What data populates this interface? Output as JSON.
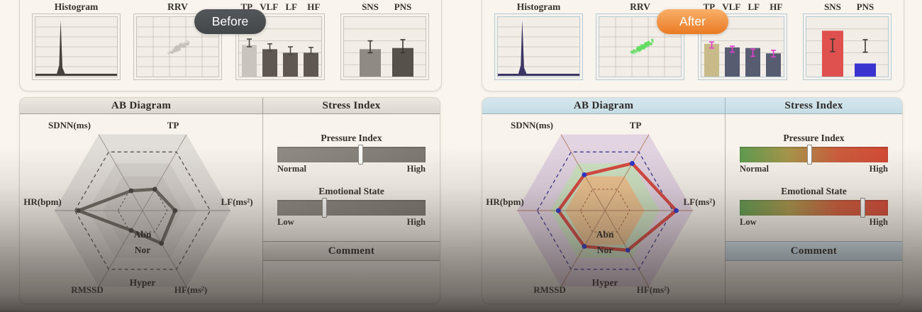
{
  "page": {
    "background": "#faf5ee"
  },
  "groups": [
    {
      "id": "before",
      "badge": {
        "label": "Before",
        "color_start": "#535759",
        "color_end": "#43474a",
        "text_color": "#ffffff"
      },
      "theme": {
        "panel_border": "#d7d2ca",
        "box_border": "#c7c2bb",
        "box_bg": "#f2eee7",
        "grid_color": "rgba(125,115,105,0.28)",
        "header_bg_start": "#ece8e1",
        "header_bg_end": "#dcd8d1",
        "header_border": "#a29d96"
      },
      "top_charts": {
        "histogram": {
          "label": "Histogram",
          "spike_color": "#46413c",
          "peak_x": 0.31,
          "peak_height": 0.92
        },
        "rrv": {
          "label": "RRV",
          "dot_color": "#c6c1ba",
          "dot_count": 110,
          "seed": 7
        },
        "spectrum": {
          "labels": [
            "TP",
            "VLF",
            "LF",
            "HF"
          ],
          "values": [
            0.53,
            0.46,
            0.4,
            0.4
          ],
          "bar_colors": [
            "#c9c4bd",
            "#5f5852",
            "#5f5852",
            "#5f5852"
          ],
          "error_bars": [
            [
              0.5,
              0.63
            ],
            [
              0.43,
              0.55
            ],
            [
              0.37,
              0.5
            ],
            [
              0.38,
              0.49
            ]
          ],
          "error_color": "#4e4944"
        },
        "ans": {
          "labels": [
            "SNS",
            "PNS"
          ],
          "values": [
            0.46,
            0.48
          ],
          "bar_colors": [
            "#8f8a83",
            "#57514b"
          ],
          "error_bars": [
            [
              0.4,
              0.6
            ],
            [
              0.4,
              0.62
            ]
          ],
          "error_color": "#3c3834"
        }
      },
      "ab_diagram": {
        "title": "AB Diagram",
        "axes": {
          "hr": "HR(bpm)",
          "sdnn": "SDNN(ms)",
          "tp": "TP",
          "lf": "LF(ms²)",
          "hf": "HF(ms²)",
          "rmssd": "RMSSD"
        },
        "zone_labels": [
          "Abn",
          "Nor",
          "Hyper"
        ],
        "values": {
          "hr": 0.73,
          "sdnn": 0.26,
          "tp": 0.28,
          "lf": 0.37,
          "hf": 0.43,
          "rmssd": 0.26
        },
        "colors": {
          "zones": [
            "#e1ddd8",
            "#d6d2cd",
            "#cdc9c4"
          ],
          "axis": "#98938d",
          "dashed_ring": "#59544e",
          "inner_dash": "#59544e",
          "line": "#6e6861",
          "dot": "#4a4540"
        }
      },
      "stress": {
        "title": "Stress Index",
        "pressure": {
          "label": "Pressure Index",
          "min": "Normal",
          "max": "High",
          "value": 0.56
        },
        "emotional": {
          "label": "Emotional State",
          "min": "Low",
          "max": "High",
          "value": 0.32
        },
        "bar_colors": [
          "#908b84",
          "#87827b",
          "#7d7871"
        ],
        "comment_title": "Comment"
      }
    },
    {
      "id": "after",
      "badge": {
        "label": "After",
        "color_start": "#f8b069",
        "color_end": "#ea7a22",
        "text_color": "#ffffff"
      },
      "theme": {
        "panel_border": "#ddd8d0",
        "box_border": "#b5cad4",
        "box_bg": "#f2eee7",
        "grid_color": "rgba(125,115,105,0.28)",
        "header_bg_start": "#d6e7ed",
        "header_bg_end": "#c5dce4",
        "header_border": "#9fb3bb"
      },
      "top_charts": {
        "histogram": {
          "label": "Histogram",
          "spike_color": "#3b3565",
          "peak_x": 0.3,
          "peak_height": 0.92
        },
        "rrv": {
          "label": "RRV",
          "dot_color": "#63dc63",
          "dot_count": 130,
          "seed": 3
        },
        "spectrum": {
          "labels": [
            "TP",
            "VLF",
            "LF",
            "HF"
          ],
          "values": [
            0.55,
            0.49,
            0.48,
            0.39
          ],
          "bar_colors": [
            "#c8bb89",
            "#585c70",
            "#585c70",
            "#585c70"
          ],
          "error_bars": [
            [
              0.48,
              0.58
            ],
            [
              0.41,
              0.51
            ],
            [
              0.34,
              0.46
            ],
            [
              0.33,
              0.44
            ]
          ],
          "error_color": "#e23fd1"
        },
        "ans": {
          "labels": [
            "SNS",
            "PNS"
          ],
          "values": [
            0.77,
            0.22
          ],
          "bar_colors": [
            "#df514f",
            "#3a33d0"
          ],
          "error_bars": [
            [
              0.42,
              0.63
            ],
            [
              0.41,
              0.62
            ]
          ],
          "error_color": "#3c3834"
        }
      },
      "ab_diagram": {
        "title": "AB Diagram",
        "axes": {
          "hr": "HR(bpm)",
          "sdnn": "SDNN(ms)",
          "tp": "TP",
          "lf": "LF(ms²)",
          "hf": "HF(ms²)",
          "rmssd": "RMSSD"
        },
        "zone_labels": [
          "Abn",
          "Nor",
          "Hyper"
        ],
        "values": {
          "hr": 0.53,
          "sdnn": 0.47,
          "tp": 0.62,
          "lf": 0.81,
          "hf": 0.52,
          "rmssd": 0.47
        },
        "colors": {
          "zones": [
            "#e3d4e2",
            "#cfe3c3",
            "#eec491"
          ],
          "axis": "#b07f60",
          "dashed_ring": "#3c3a8e",
          "inner_dash": "#a35c3a",
          "line": "#d84a41",
          "dot": "#2b36cf"
        }
      },
      "stress": {
        "title": "Stress Index",
        "pressure": {
          "label": "Pressure Index",
          "min": "Normal",
          "max": "High",
          "value": 0.47
        },
        "emotional": {
          "label": "Emotional State",
          "min": "Low",
          "max": "High",
          "value": 0.83
        },
        "bar_colors": [
          "#5f9c50",
          "#a8954a",
          "#cc5c3c",
          "#d34a36"
        ],
        "comment_title": "Comment"
      }
    }
  ]
}
